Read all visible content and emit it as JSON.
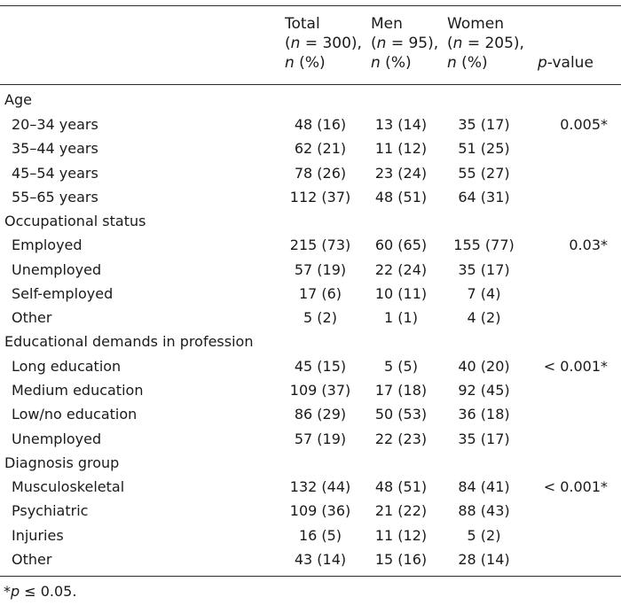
{
  "header": {
    "total": {
      "line1": "Total",
      "line2a": "(",
      "line2n": "n",
      "line2b": " = 300),",
      "line3n": "n",
      "line3b": " (%)"
    },
    "men": {
      "line1": "Men",
      "line2a": "(",
      "line2n": "n",
      "line2b": " = 95),",
      "line3n": "n",
      "line3b": " (%)"
    },
    "women": {
      "line1": "Women",
      "line2a": "(",
      "line2n": "n",
      "line2b": " = 205),",
      "line3n": "n",
      "line3b": " (%)"
    },
    "pvalue": {
      "p": "p",
      "rest": "-value"
    }
  },
  "sections": [
    {
      "title": "Age",
      "rows": [
        {
          "label": "20–34 years",
          "total": "48 (16)",
          "men": "13 (14)",
          "women": "35 (17)",
          "p": "0.005*"
        },
        {
          "label": "35–44 years",
          "total": "62 (21)",
          "men": "11 (12)",
          "women": "51 (25)",
          "p": ""
        },
        {
          "label": "45–54 years",
          "total": "78 (26)",
          "men": "23 (24)",
          "women": "55 (27)",
          "p": ""
        },
        {
          "label": "55–65 years",
          "total": "112 (37)",
          "men": "48 (51)",
          "women": "64 (31)",
          "p": ""
        }
      ]
    },
    {
      "title": "Occupational status",
      "rows": [
        {
          "label": "Employed",
          "total": "215 (73)",
          "men": "60 (65)",
          "women": "155 (77)",
          "p": "0.03*"
        },
        {
          "label": "Unemployed",
          "total": "57 (19)",
          "men": "22 (24)",
          "women": "35 (17)",
          "p": ""
        },
        {
          "label": "Self-employed",
          "total": "17 (6)",
          "men": "10 (11)",
          "women": "7 (4)",
          "p": ""
        },
        {
          "label": "Other",
          "total": "5 (2)",
          "men": "1 (1)",
          "women": "4 (2)",
          "p": ""
        }
      ]
    },
    {
      "title": "Educational demands in profession",
      "rows": [
        {
          "label": "Long education",
          "total": "45 (15)",
          "men": "5 (5)",
          "women": "40 (20)",
          "p": "< 0.001*"
        },
        {
          "label": "Medium education",
          "total": "109 (37)",
          "men": "17 (18)",
          "women": "92 (45)",
          "p": ""
        },
        {
          "label": "Low/no education",
          "total": "86 (29)",
          "men": "50 (53)",
          "women": "36 (18)",
          "p": ""
        },
        {
          "label": "Unemployed",
          "total": "57 (19)",
          "men": "22 (23)",
          "women": "35 (17)",
          "p": ""
        }
      ]
    },
    {
      "title": "Diagnosis group",
      "rows": [
        {
          "label": "Musculoskeletal",
          "total": "132 (44)",
          "men": "48 (51)",
          "women": "84 (41)",
          "p": "< 0.001*"
        },
        {
          "label": "Psychiatric",
          "total": "109 (36)",
          "men": "21 (22)",
          "women": "88 (43)",
          "p": ""
        },
        {
          "label": "Injuries",
          "total": "16 (5)",
          "men": "11 (12)",
          "women": "5 (2)",
          "p": ""
        },
        {
          "label": "Other",
          "total": "43 (14)",
          "men": "15 (16)",
          "women": "28 (14)",
          "p": ""
        }
      ]
    }
  ],
  "footnote": {
    "star": "*",
    "p": "p",
    "rest": " ≤ 0.05."
  }
}
